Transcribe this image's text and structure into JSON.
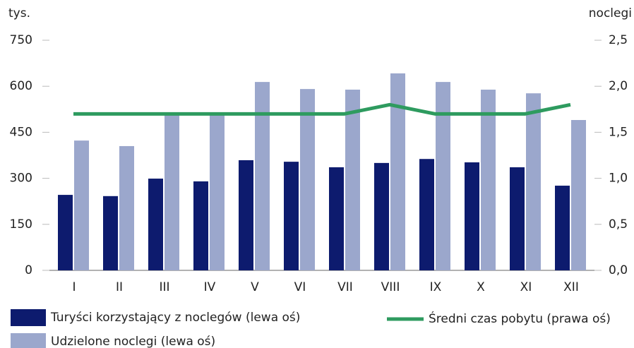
{
  "chart_data": {
    "type": "bar",
    "y_axis_label": "tys.",
    "y2_axis_label": "noclegi",
    "categories": [
      "I",
      "II",
      "III",
      "IV",
      "V",
      "VI",
      "VII",
      "VIII",
      "IX",
      "X",
      "XI",
      "XII"
    ],
    "series": [
      {
        "name": "Turyści korzystający z noclegów (lewa oś)",
        "color": "#0d1b6e",
        "type": "bar",
        "values": [
          246,
          242,
          299,
          290,
          359,
          354,
          336,
          350,
          363,
          352,
          336,
          276
        ]
      },
      {
        "name": "Udzielone noclegi (lewa oś)",
        "color": "#9ba7cc",
        "type": "bar",
        "values": [
          423,
          405,
          513,
          508,
          614,
          591,
          589,
          642,
          614,
          589,
          577,
          490
        ]
      },
      {
        "name": "Średni czas pobytu (prawa oś)",
        "color": "#2e9b5f",
        "type": "line",
        "axis": "y2",
        "values": [
          1.7,
          1.7,
          1.7,
          1.7,
          1.7,
          1.7,
          1.7,
          1.8,
          1.7,
          1.7,
          1.7,
          1.8
        ]
      }
    ],
    "ylim": [
      0,
      750
    ],
    "yticks": [
      0,
      150,
      300,
      450,
      600,
      750
    ],
    "y2lim": [
      0,
      2.5
    ],
    "y2ticks": [
      {
        "value": 0,
        "label": "0,0"
      },
      {
        "value": 0.5,
        "label": "0,5"
      },
      {
        "value": 1,
        "label": "1,0"
      },
      {
        "value": 1.5,
        "label": "1,5"
      },
      {
        "value": 2,
        "label": "2,0"
      },
      {
        "value": 2.5,
        "label": "2,5"
      }
    ]
  }
}
